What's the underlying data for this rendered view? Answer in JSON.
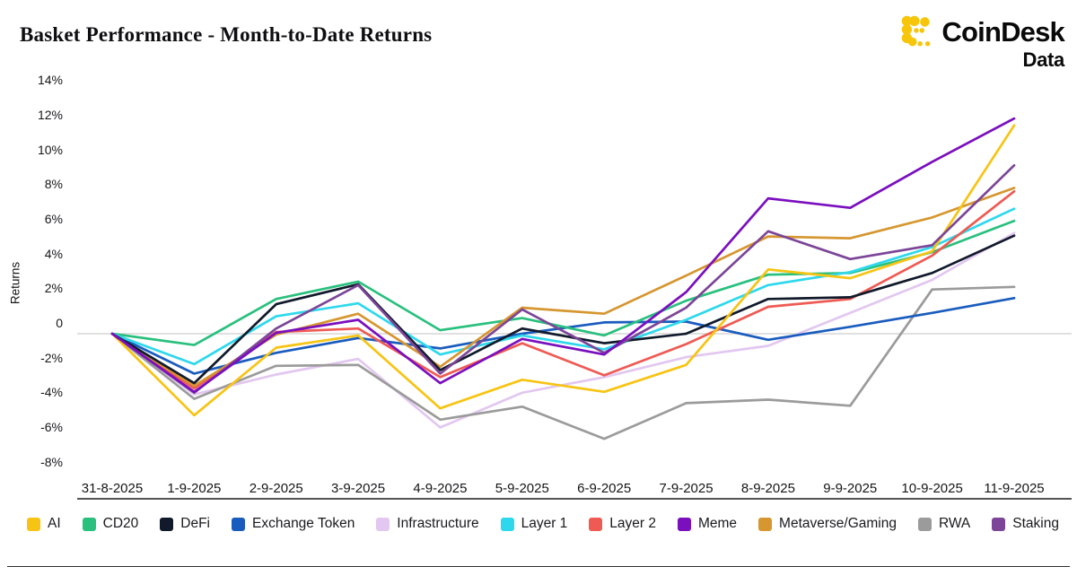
{
  "header": {
    "title": "Basket Performance - Month-to-Date Returns",
    "logo": {
      "brand": "CoinDesk",
      "sub": "Data",
      "icon_color": "#F7C60A"
    }
  },
  "chart_data": {
    "type": "line",
    "title": "Basket Performance - Month-to-Date Returns",
    "xlabel": "",
    "ylabel": "Returns",
    "unit": "%",
    "grid": "zero-line-only",
    "legend_position": "bottom",
    "ylim": [
      -9.5,
      14.8
    ],
    "yticks": {
      "values": [
        14,
        12,
        10,
        8,
        6,
        4,
        2,
        0,
        -2,
        -4,
        -6,
        -8
      ],
      "labels": [
        "14%",
        "12%",
        "10%",
        "8%",
        "6%",
        "4%",
        "2%",
        "0",
        "-2%",
        "-4%",
        "-6%",
        "-8%"
      ]
    },
    "categories": [
      "31-8-2025",
      "1-9-2025",
      "2-9-2025",
      "3-9-2025",
      "4-9-2025",
      "5-9-2025",
      "6-9-2025",
      "7-9-2025",
      "8-9-2025",
      "9-9-2025",
      "10-9-2025",
      "11-9-2025"
    ],
    "series": [
      {
        "name": "AI",
        "color": "#F7C413",
        "values": [
          0,
          -4.7,
          -0.8,
          -0.1,
          -4.3,
          -2.65,
          -3.35,
          -1.8,
          3.7,
          3.2,
          4.75,
          12.0
        ]
      },
      {
        "name": "CD20",
        "color": "#29C07E",
        "values": [
          0,
          -0.65,
          2.0,
          3.0,
          0.2,
          0.9,
          -0.1,
          1.9,
          3.4,
          3.5,
          4.7,
          6.5
        ]
      },
      {
        "name": "DeFi",
        "color": "#111A2B",
        "values": [
          0,
          -2.85,
          1.7,
          2.85,
          -2.1,
          0.3,
          -0.55,
          0.0,
          2.0,
          2.1,
          3.5,
          5.65
        ]
      },
      {
        "name": "Exchange Token",
        "color": "#1A5CBE",
        "values": [
          0,
          -2.3,
          -1.1,
          -0.25,
          -0.85,
          0.0,
          0.65,
          0.7,
          -0.35,
          0.4,
          1.2,
          2.05
        ]
      },
      {
        "name": "Infrastructure",
        "color": "#E2C7F0",
        "values": [
          0,
          -3.5,
          -2.35,
          -1.45,
          -5.4,
          -3.4,
          -2.5,
          -1.35,
          -0.7,
          1.2,
          3.1,
          5.8
        ]
      },
      {
        "name": "Layer 1",
        "color": "#2ED8EC",
        "values": [
          0,
          -1.75,
          1.0,
          1.75,
          -1.2,
          -0.1,
          -0.9,
          0.8,
          2.8,
          3.55,
          5.0,
          7.2
        ]
      },
      {
        "name": "Layer 2",
        "color": "#EF5A53",
        "values": [
          0,
          -3.15,
          0.1,
          0.3,
          -2.5,
          -0.55,
          -2.4,
          -0.6,
          1.55,
          2.0,
          4.5,
          8.2
        ]
      },
      {
        "name": "Meme",
        "color": "#7A0FBE",
        "values": [
          0,
          -3.35,
          0.05,
          0.8,
          -2.85,
          -0.3,
          -1.2,
          2.4,
          7.8,
          7.25,
          9.9,
          12.4
        ]
      },
      {
        "name": "Metaverse/Gaming",
        "color": "#D69630",
        "values": [
          0,
          -3.0,
          -0.05,
          1.15,
          -1.9,
          1.5,
          1.15,
          3.35,
          5.6,
          5.5,
          6.7,
          8.4
        ]
      },
      {
        "name": "RWA",
        "color": "#9B9B9B",
        "values": [
          0,
          -3.75,
          -1.85,
          -1.8,
          -4.95,
          -4.2,
          -6.05,
          -4.0,
          -3.8,
          -4.15,
          2.55,
          2.7
        ]
      },
      {
        "name": "Staking",
        "color": "#7C4598",
        "values": [
          0,
          -3.4,
          0.3,
          2.8,
          -2.3,
          1.4,
          -1.1,
          1.5,
          5.9,
          4.3,
          5.1,
          9.7
        ]
      }
    ]
  }
}
